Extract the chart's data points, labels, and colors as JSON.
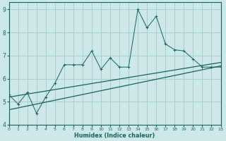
{
  "xlabel": "Humidex (Indice chaleur)",
  "bg_color": "#cce8e8",
  "grid_color": "#aacccc",
  "line_color": "#1a6060",
  "xlim": [
    0,
    23
  ],
  "ylim": [
    4,
    9.3
  ],
  "x_data": [
    0,
    1,
    2,
    3,
    4,
    5,
    6,
    7,
    8,
    9,
    10,
    11,
    12,
    13,
    14,
    15,
    16,
    17,
    18,
    19,
    20,
    21,
    22,
    23
  ],
  "y_data": [
    5.3,
    4.9,
    5.4,
    4.5,
    5.2,
    5.8,
    6.6,
    6.6,
    6.6,
    7.2,
    6.4,
    6.9,
    6.5,
    6.5,
    9.0,
    8.2,
    8.7,
    7.5,
    7.25,
    7.2,
    6.85,
    6.5,
    6.5,
    6.5
  ],
  "trend1_start": 5.2,
  "trend1_end": 6.7,
  "trend2_start": 4.65,
  "trend2_end": 6.55,
  "yticks": [
    4,
    5,
    6,
    7,
    8,
    9
  ]
}
